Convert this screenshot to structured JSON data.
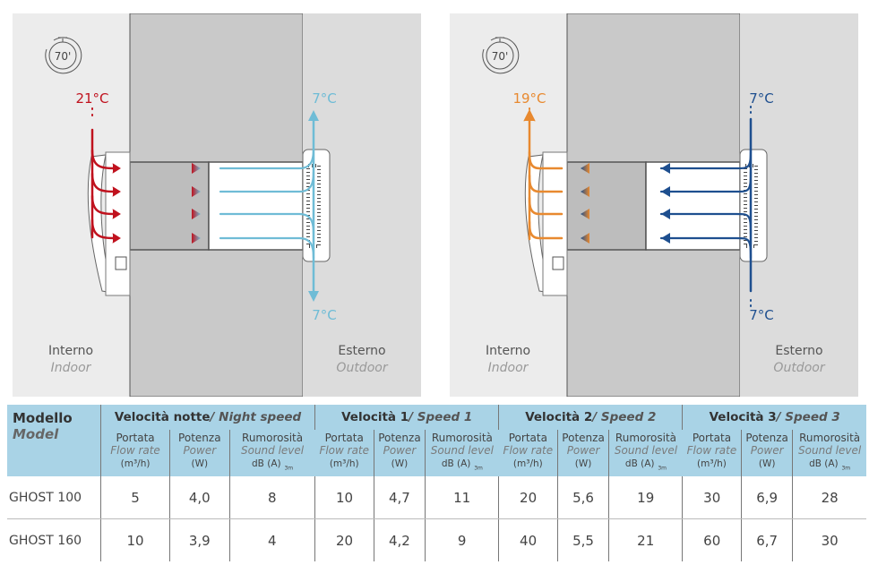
{
  "diagrams": [
    {
      "timer": "70'",
      "indoor_temp": "21°C",
      "outdoor_top_temp": "7°C",
      "outdoor_bottom_temp": "7°C",
      "indoor_label": "Interno",
      "indoor_label_en": "Indoor",
      "outdoor_label": "Esterno",
      "outdoor_label_en": "Outdoor",
      "direction": "in-to-out",
      "indoor_color": "#c0121e",
      "outdoor_color": "#6fbcd6"
    },
    {
      "timer": "70'",
      "indoor_temp": "19°C",
      "outdoor_top_temp": "7°C",
      "outdoor_bottom_temp": "7°C",
      "indoor_label": "Interno",
      "indoor_label_en": "Indoor",
      "outdoor_label": "Esterno",
      "outdoor_label_en": "Outdoor",
      "direction": "out-to-in",
      "indoor_color": "#e8892f",
      "outdoor_color": "#1e4f8f"
    }
  ],
  "table": {
    "model": "Modello",
    "model_en": "Model",
    "groups": [
      {
        "it": "Velocità notte",
        "en": "/ Night speed"
      },
      {
        "it": "Velocità 1",
        "en": "/ Speed 1"
      },
      {
        "it": "Velocità 2",
        "en": "/ Speed 2"
      },
      {
        "it": "Velocità 3",
        "en": "/ Speed 3"
      }
    ],
    "sub": [
      {
        "it": "Portata",
        "en": "Flow rate",
        "unit": "(m³/h)"
      },
      {
        "it": "Potenza",
        "en": "Power",
        "unit": "(W)"
      },
      {
        "it": "Rumorosità",
        "en": "Sound level",
        "unit": "dB (A)",
        "sub": "3m"
      }
    ],
    "rows": [
      {
        "model": "GHOST 100",
        "values": [
          "5",
          "4,0",
          "8",
          "10",
          "4,7",
          "11",
          "20",
          "5,6",
          "19",
          "30",
          "6,9",
          "28"
        ]
      },
      {
        "model": "GHOST 160",
        "values": [
          "10",
          "3,9",
          "4",
          "20",
          "4,2",
          "9",
          "40",
          "5,5",
          "21",
          "60",
          "6,7",
          "30"
        ]
      }
    ]
  }
}
